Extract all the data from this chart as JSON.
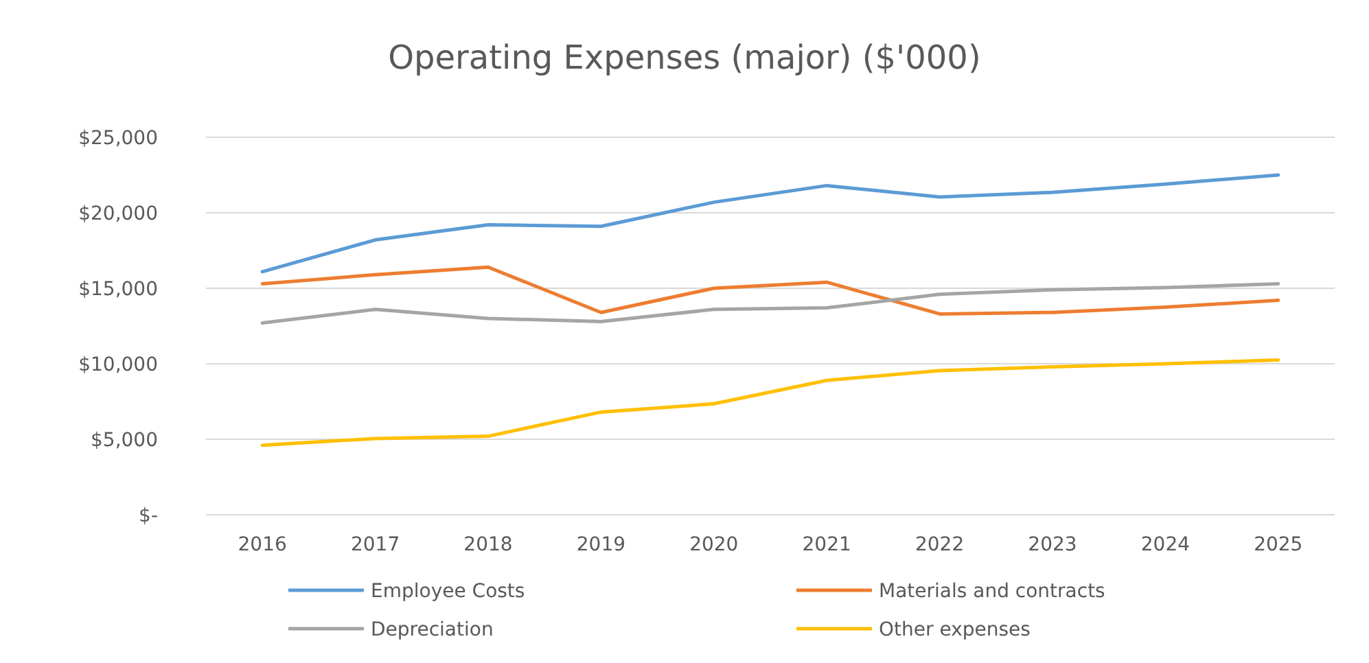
{
  "chart_data": {
    "type": "line",
    "title": "Operating Expenses (major) ($'000)",
    "categories": [
      "2016",
      "2017",
      "2018",
      "2019",
      "2020",
      "2021",
      "2022",
      "2023",
      "2024",
      "2025"
    ],
    "series": [
      {
        "name": "Employee Costs",
        "color": "#5b9bd5",
        "values": [
          16100,
          18200,
          19200,
          19100,
          20700,
          21800,
          21050,
          21350,
          21900,
          22500
        ]
      },
      {
        "name": "Materials and contracts",
        "color": "#ed7d31",
        "values": [
          15300,
          15900,
          16400,
          13400,
          15000,
          15400,
          13300,
          13400,
          13750,
          14200
        ]
      },
      {
        "name": "Depreciation",
        "color": "#a5a5a5",
        "values": [
          12700,
          13600,
          13000,
          12800,
          13600,
          13700,
          14600,
          14900,
          15050,
          15300
        ]
      },
      {
        "name": "Other expenses",
        "color": "#ffc000",
        "values": [
          4600,
          5050,
          5200,
          6800,
          7350,
          8900,
          9550,
          9800,
          10000,
          10250
        ]
      }
    ],
    "ylim": [
      0,
      25000
    ],
    "yticks": [
      {
        "value": 0,
        "label": "$-"
      },
      {
        "value": 5000,
        "label": "$5,000"
      },
      {
        "value": 10000,
        "label": "$10,000"
      },
      {
        "value": 15000,
        "label": "$15,000"
      },
      {
        "value": 20000,
        "label": "$20,000"
      },
      {
        "value": 25000,
        "label": "$25,000"
      }
    ],
    "grid": "y",
    "legend": "bottom",
    "marker": "none",
    "line_style": "solid"
  }
}
